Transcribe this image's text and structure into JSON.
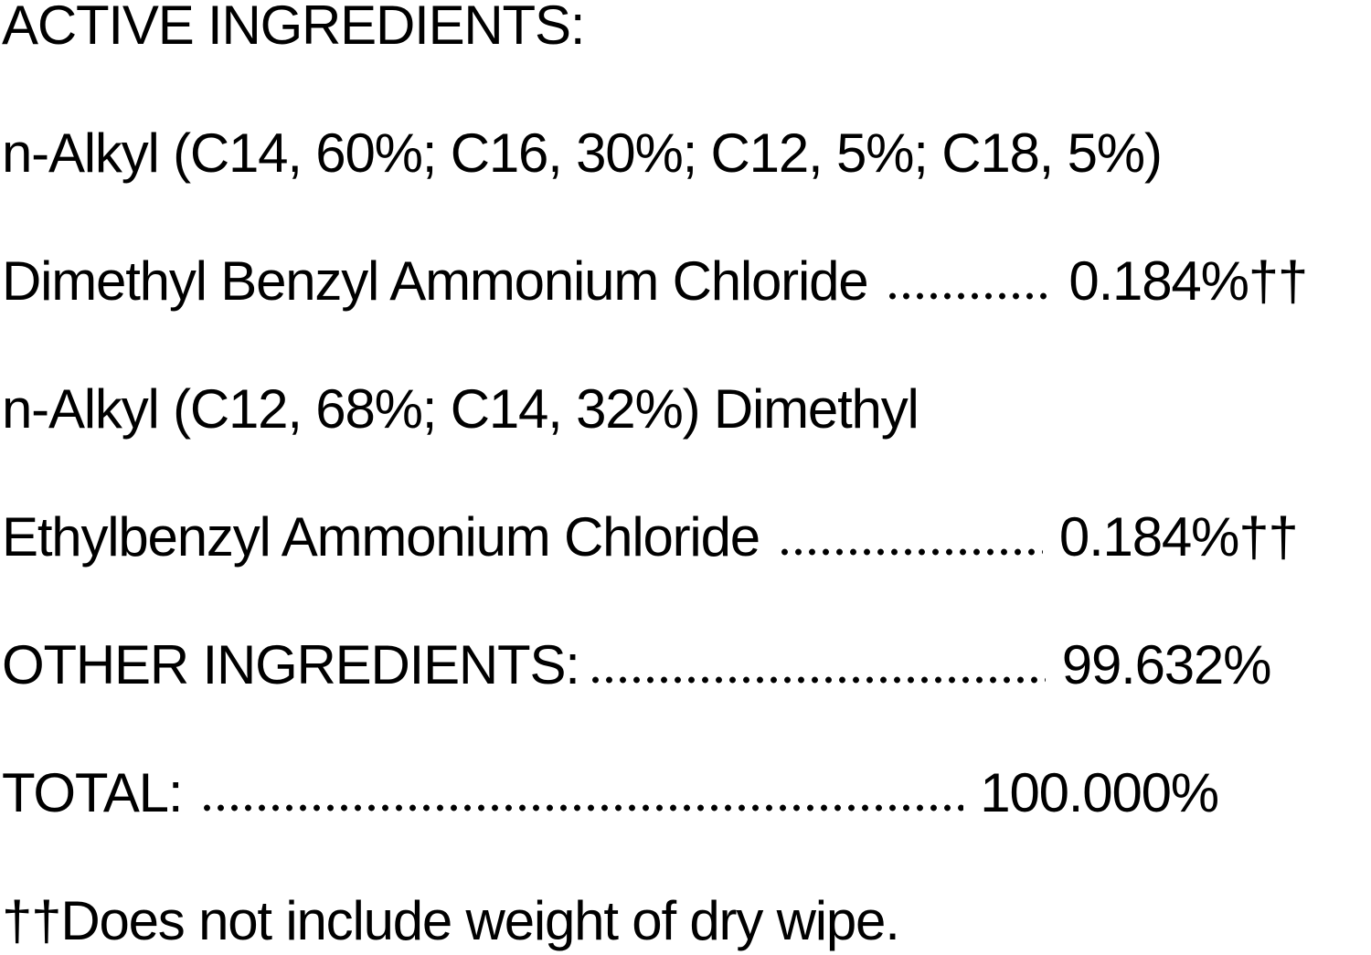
{
  "heading": "ACTIVE INGREDIENTS:",
  "ingredient1": {
    "line1": "n-Alkyl (C14, 60%; C16, 30%; C12, 5%; C18, 5%)",
    "line2": "Dimethyl Benzyl Ammonium Chloride",
    "value": "0.184%††"
  },
  "ingredient2": {
    "line1": "n-Alkyl (C12, 68%; C14, 32%) Dimethyl",
    "line2": "Ethylbenzyl Ammonium Chloride",
    "value": "0.184%††"
  },
  "other": {
    "label": "OTHER INGREDIENTS:",
    "value": "99.632%"
  },
  "total": {
    "label": "TOTAL:",
    "value": "100.000%"
  },
  "footnote": "††Does not include weight of dry wipe."
}
